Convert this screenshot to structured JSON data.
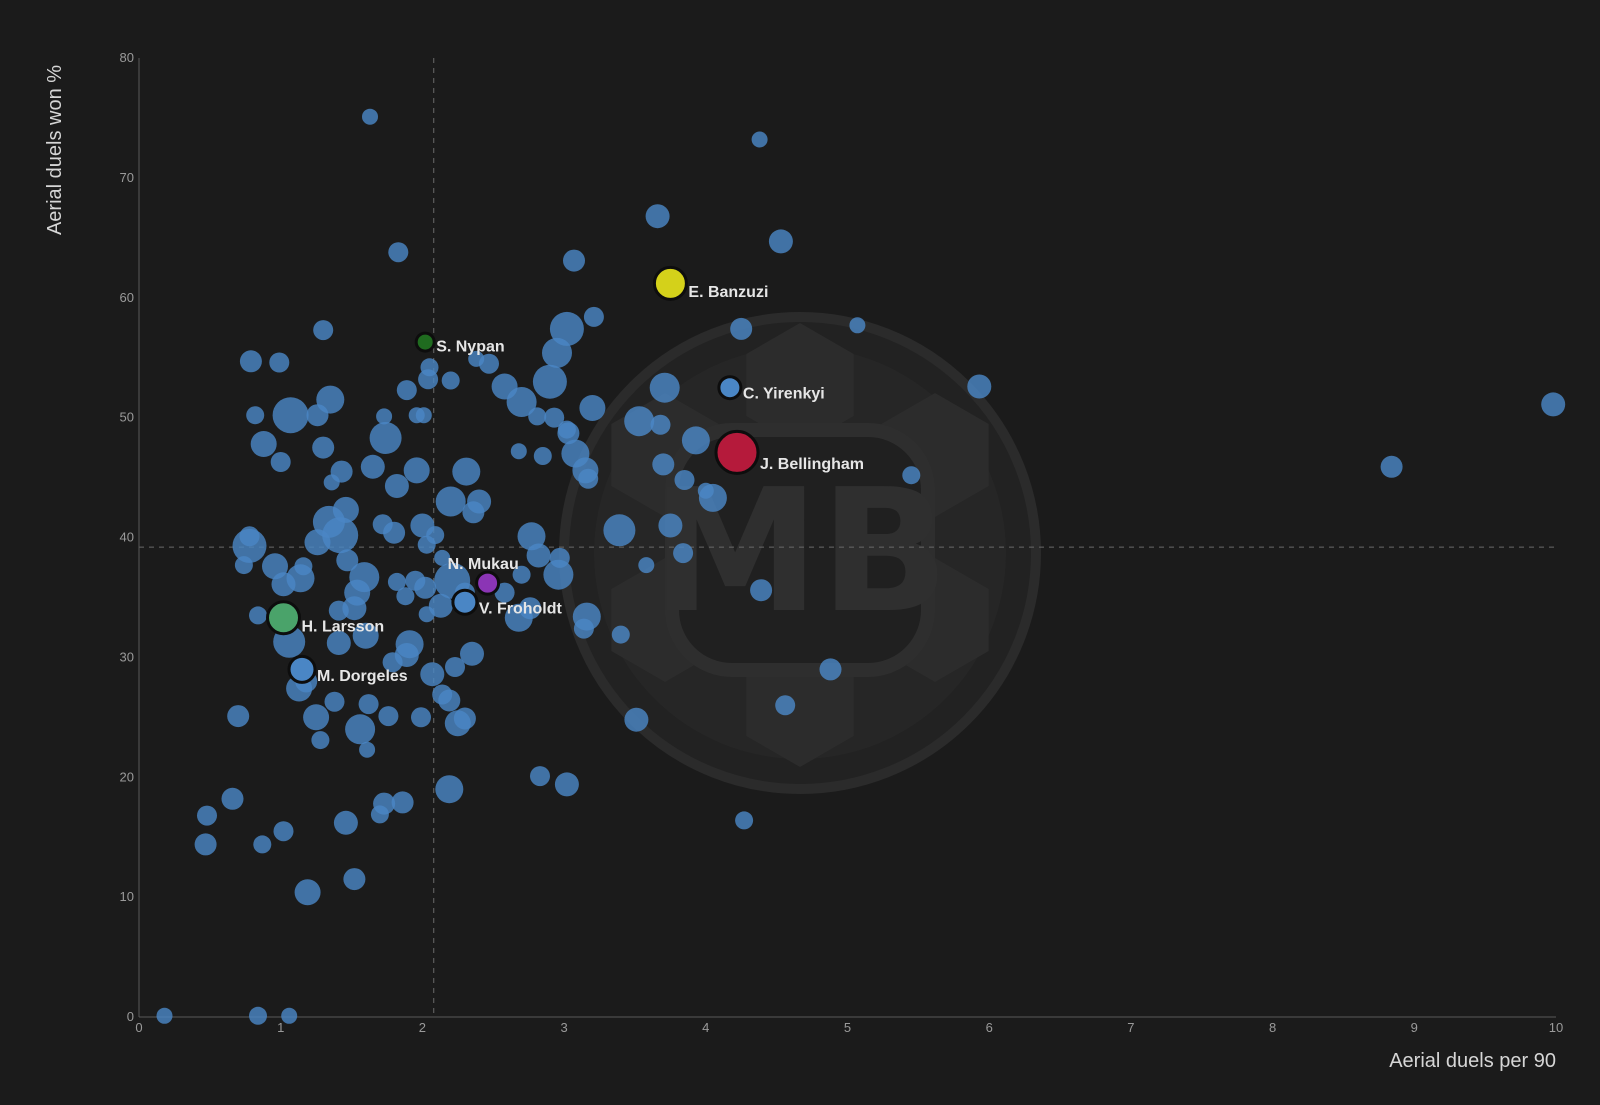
{
  "chart_data": {
    "type": "scatter",
    "xlabel": "Aerial duels per 90",
    "ylabel": "Aerial duels won %",
    "xlim": [
      0,
      10
    ],
    "ylim": [
      0,
      80
    ],
    "x_ticks": [
      "0",
      "1",
      "2",
      "3",
      "4",
      "5",
      "6",
      "7",
      "8",
      "9",
      "10"
    ],
    "y_ticks": [
      "0",
      "10",
      "20",
      "30",
      "40",
      "50",
      "60",
      "70",
      "80"
    ],
    "reference_lines": {
      "x": 2.08,
      "y": 39.2
    },
    "grid": false,
    "colors": {
      "background": "#1b1b1b",
      "points": "#4a86c5",
      "axis": "#5a5a5a",
      "reference": "#6a6a6a"
    },
    "watermark": "MB",
    "highlighted": [
      {
        "name": "E. Banzuzi",
        "x": 3.75,
        "y": 61.2,
        "color": "#d4d11a",
        "size": 16
      },
      {
        "name": "S. Nypan",
        "x": 2.02,
        "y": 56.3,
        "color": "#1f6b1f",
        "size": 9
      },
      {
        "name": "C. Yirenkyi",
        "x": 4.17,
        "y": 52.5,
        "color": "#4a86c5",
        "size": 11
      },
      {
        "name": "J. Bellingham",
        "x": 4.22,
        "y": 47.1,
        "color": "#b51a3b",
        "size": 21
      },
      {
        "name": "N. Mukau",
        "x": 2.46,
        "y": 36.2,
        "color": "#8b35b5",
        "size": 11
      },
      {
        "name": "V. Froholdt",
        "x": 2.3,
        "y": 34.6,
        "color": "#4a86c5",
        "size": 12
      },
      {
        "name": "H. Larsson",
        "x": 1.02,
        "y": 33.3,
        "color": "#4aa36a",
        "size": 16
      },
      {
        "name": "M. Dorgeles",
        "x": 1.15,
        "y": 29.0,
        "color": "#4a86c5",
        "size": 13
      }
    ],
    "points": [
      [
        1.63,
        75.1,
        8
      ],
      [
        4.38,
        73.2,
        8
      ],
      [
        3.66,
        66.8,
        12
      ],
      [
        1.83,
        63.8,
        10
      ],
      [
        4.53,
        64.7,
        12
      ],
      [
        3.07,
        63.1,
        11
      ],
      [
        3.21,
        58.4,
        10
      ],
      [
        3.02,
        57.4,
        17
      ],
      [
        4.25,
        57.4,
        11
      ],
      [
        5.07,
        57.7,
        8
      ],
      [
        1.3,
        57.3,
        10
      ],
      [
        0.79,
        54.7,
        11
      ],
      [
        0.99,
        54.6,
        10
      ],
      [
        2.95,
        55.4,
        15
      ],
      [
        2.47,
        54.5,
        10
      ],
      [
        2.38,
        54.9,
        8
      ],
      [
        2.05,
        54.2,
        9
      ],
      [
        2.04,
        53.2,
        10
      ],
      [
        2.2,
        53.1,
        9
      ],
      [
        2.9,
        53.0,
        17
      ],
      [
        2.58,
        52.6,
        13
      ],
      [
        1.89,
        52.3,
        10
      ],
      [
        3.71,
        52.5,
        15
      ],
      [
        5.93,
        52.6,
        12
      ],
      [
        1.35,
        51.5,
        14
      ],
      [
        2.7,
        51.3,
        15
      ],
      [
        3.2,
        50.8,
        13
      ],
      [
        9.98,
        51.1,
        12
      ],
      [
        1.07,
        50.2,
        18
      ],
      [
        0.82,
        50.2,
        9
      ],
      [
        1.26,
        50.2,
        11
      ],
      [
        1.73,
        50.1,
        8
      ],
      [
        1.96,
        50.2,
        8
      ],
      [
        2.01,
        50.2,
        8
      ],
      [
        2.81,
        50.1,
        9
      ],
      [
        2.93,
        50.0,
        10
      ],
      [
        3.53,
        49.7,
        15
      ],
      [
        3.68,
        49.4,
        10
      ],
      [
        3.02,
        49.0,
        9
      ],
      [
        3.03,
        48.7,
        11
      ],
      [
        1.74,
        48.3,
        16
      ],
      [
        0.88,
        47.8,
        13
      ],
      [
        1.3,
        47.5,
        11
      ],
      [
        2.68,
        47.2,
        8
      ],
      [
        3.93,
        48.1,
        14
      ],
      [
        3.08,
        47.0,
        14
      ],
      [
        2.85,
        46.8,
        9
      ],
      [
        1.0,
        46.3,
        10
      ],
      [
        1.43,
        45.5,
        11
      ],
      [
        1.65,
        45.9,
        12
      ],
      [
        1.96,
        45.6,
        13
      ],
      [
        2.31,
        45.5,
        14
      ],
      [
        3.15,
        45.6,
        13
      ],
      [
        3.17,
        44.9,
        10
      ],
      [
        3.7,
        46.1,
        11
      ],
      [
        3.85,
        44.8,
        10
      ],
      [
        5.45,
        45.2,
        9
      ],
      [
        8.84,
        45.9,
        11
      ],
      [
        1.36,
        44.6,
        8
      ],
      [
        1.82,
        44.3,
        12
      ],
      [
        2.2,
        43.0,
        15
      ],
      [
        2.4,
        43.0,
        12
      ],
      [
        2.36,
        42.1,
        11
      ],
      [
        1.46,
        42.3,
        13
      ],
      [
        4.05,
        43.3,
        14
      ],
      [
        4.0,
        43.9,
        8
      ],
      [
        1.34,
        41.3,
        16
      ],
      [
        1.72,
        41.1,
        10
      ],
      [
        2.0,
        41.0,
        12
      ],
      [
        1.8,
        40.4,
        11
      ],
      [
        1.42,
        40.2,
        18
      ],
      [
        1.26,
        39.6,
        13
      ],
      [
        2.09,
        40.2,
        9
      ],
      [
        0.78,
        40.1,
        10
      ],
      [
        2.77,
        40.1,
        14
      ],
      [
        3.39,
        40.6,
        16
      ],
      [
        3.75,
        41.0,
        12
      ],
      [
        0.78,
        39.3,
        17
      ],
      [
        2.03,
        39.4,
        9
      ],
      [
        2.14,
        38.3,
        8
      ],
      [
        2.82,
        38.5,
        12
      ],
      [
        2.97,
        38.3,
        10
      ],
      [
        3.84,
        38.7,
        10
      ],
      [
        1.47,
        38.1,
        11
      ],
      [
        0.74,
        37.7,
        9
      ],
      [
        0.96,
        37.6,
        13
      ],
      [
        1.16,
        37.6,
        9
      ],
      [
        1.14,
        36.6,
        14
      ],
      [
        1.02,
        36.1,
        12
      ],
      [
        1.59,
        36.7,
        15
      ],
      [
        1.82,
        36.3,
        9
      ],
      [
        1.95,
        36.4,
        10
      ],
      [
        2.21,
        36.4,
        18
      ],
      [
        2.58,
        35.4,
        10
      ],
      [
        2.7,
        36.9,
        9
      ],
      [
        2.96,
        36.9,
        15
      ],
      [
        3.58,
        37.7,
        8
      ],
      [
        1.54,
        35.4,
        13
      ],
      [
        1.88,
        35.1,
        9
      ],
      [
        2.02,
        35.8,
        11
      ],
      [
        2.13,
        34.3,
        12
      ],
      [
        2.3,
        35.4,
        10
      ],
      [
        2.76,
        34.1,
        11
      ],
      [
        4.39,
        35.6,
        11
      ],
      [
        1.52,
        34.1,
        12
      ],
      [
        1.41,
        33.9,
        10
      ],
      [
        0.84,
        33.5,
        9
      ],
      [
        2.68,
        33.3,
        14
      ],
      [
        2.03,
        33.6,
        8
      ],
      [
        3.16,
        33.4,
        14
      ],
      [
        3.14,
        32.4,
        10
      ],
      [
        3.4,
        31.9,
        9
      ],
      [
        1.6,
        31.8,
        13
      ],
      [
        1.41,
        31.2,
        12
      ],
      [
        1.06,
        31.3,
        16
      ],
      [
        1.91,
        31.1,
        14
      ],
      [
        1.89,
        30.2,
        12
      ],
      [
        2.35,
        30.3,
        12
      ],
      [
        1.18,
        28.0,
        11
      ],
      [
        1.79,
        29.6,
        10
      ],
      [
        2.23,
        29.2,
        10
      ],
      [
        2.07,
        28.6,
        12
      ],
      [
        4.88,
        29.0,
        11
      ],
      [
        1.13,
        27.4,
        13
      ],
      [
        1.38,
        26.3,
        10
      ],
      [
        1.62,
        26.1,
        10
      ],
      [
        2.19,
        26.4,
        11
      ],
      [
        2.14,
        26.9,
        10
      ],
      [
        4.56,
        26.0,
        10
      ],
      [
        0.7,
        25.1,
        11
      ],
      [
        1.25,
        25.0,
        13
      ],
      [
        1.76,
        25.1,
        10
      ],
      [
        1.99,
        25.0,
        10
      ],
      [
        2.3,
        24.9,
        11
      ],
      [
        2.25,
        24.5,
        13
      ],
      [
        3.51,
        24.8,
        12
      ],
      [
        1.56,
        24.0,
        15
      ],
      [
        1.28,
        23.1,
        9
      ],
      [
        1.61,
        22.3,
        8
      ],
      [
        2.19,
        19.0,
        14
      ],
      [
        2.83,
        20.1,
        10
      ],
      [
        3.02,
        19.4,
        12
      ],
      [
        0.66,
        18.2,
        11
      ],
      [
        1.73,
        17.8,
        11
      ],
      [
        1.86,
        17.9,
        11
      ],
      [
        1.7,
        16.9,
        9
      ],
      [
        0.48,
        16.8,
        10
      ],
      [
        1.46,
        16.2,
        12
      ],
      [
        1.02,
        15.5,
        10
      ],
      [
        4.27,
        16.4,
        9
      ],
      [
        0.47,
        14.4,
        11
      ],
      [
        0.87,
        14.4,
        9
      ],
      [
        1.52,
        11.5,
        11
      ],
      [
        1.19,
        10.4,
        13
      ],
      [
        0.18,
        0.1,
        8
      ],
      [
        0.84,
        0.1,
        9
      ],
      [
        1.06,
        0.1,
        8
      ]
    ]
  }
}
